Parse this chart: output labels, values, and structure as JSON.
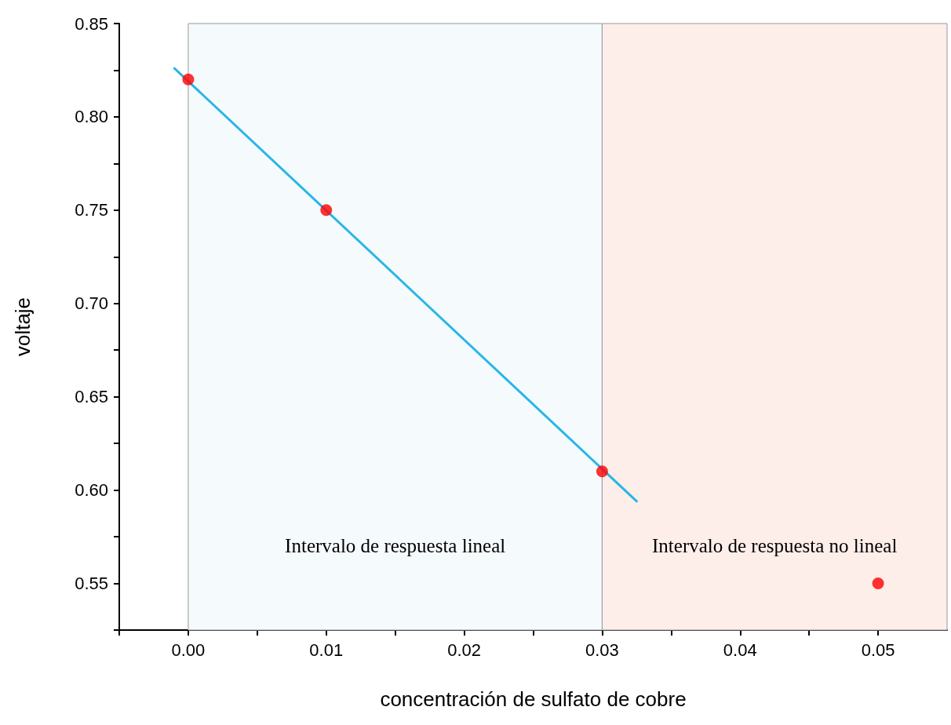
{
  "chart_data": {
    "type": "scatter",
    "xlabel": "concentración de sulfato de cobre",
    "ylabel": "voltaje",
    "marker": "circle",
    "grid": false,
    "xlim": [
      -0.005,
      0.055
    ],
    "xticks": [
      {
        "value": -0.005,
        "label": null
      },
      {
        "value": 0,
        "label": "0.00"
      },
      {
        "value": 0.005,
        "label": null
      },
      0.01,
      {
        "value": 0.015,
        "label": null
      },
      0.02,
      {
        "value": 0.025,
        "label": null
      },
      0.03,
      {
        "value": 0.035,
        "label": null
      },
      0.04,
      {
        "value": 0.045,
        "label": null
      },
      0.05
    ],
    "ylim": [
      0.525,
      0.85
    ],
    "yticks": [
      {
        "value": 0.525,
        "label": null
      },
      0.55,
      {
        "value": 0.575,
        "label": null
      },
      {
        "value": 0.6,
        "label": "0.60"
      },
      {
        "value": 0.625,
        "label": null
      },
      0.65,
      {
        "value": 0.675,
        "label": null
      },
      {
        "value": 0.7,
        "label": "0.70"
      },
      {
        "value": 0.725,
        "label": null
      },
      0.75,
      {
        "value": 0.775,
        "label": null
      },
      {
        "value": 0.8,
        "label": "0.80"
      },
      {
        "value": 0.825,
        "label": null
      },
      0.85
    ],
    "x": [
      0,
      0.01,
      0.03,
      0.05
    ],
    "series": [
      {
        "type": "scatter",
        "color": "#ff0000",
        "values": [
          0.82,
          0.75,
          0.61,
          0.55
        ]
      },
      {
        "type": "line",
        "color": "#29b6e6",
        "marker": "none",
        "line_style": "solid",
        "x": [
          -0.001,
          0.0325
        ],
        "values": [
          0.826,
          0.594
        ]
      }
    ],
    "bands": [
      {
        "axis": "x",
        "from": 0,
        "to": 0.03,
        "label": "Intervalo de respuesta lineal",
        "color": "#f5fafd"
      },
      {
        "axis": "x",
        "from": 0.03,
        "to": 0.055,
        "label": "Intervalo de respuesta no lineal",
        "color": "#fdeeea"
      }
    ]
  }
}
